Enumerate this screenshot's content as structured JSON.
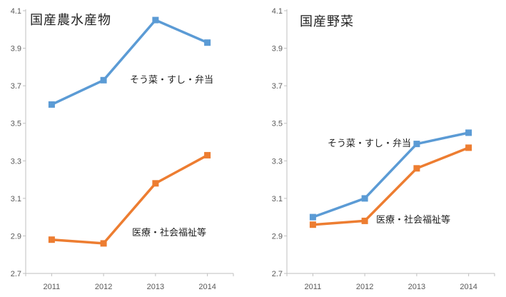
{
  "colors": {
    "series_blue": "#5B9BD5",
    "series_orange": "#ED7D31",
    "axis_line": "#BFBFBF",
    "tick_label": "#595959",
    "text": "#1f1f1f",
    "background": "#ffffff"
  },
  "chart_data": [
    {
      "type": "line",
      "title": "国産農水産物",
      "categories": [
        "2011",
        "2012",
        "2013",
        "2014"
      ],
      "y_ticks": [
        "2.7",
        "2.9",
        "3.1",
        "3.3",
        "3.5",
        "3.7",
        "3.9",
        "4.1"
      ],
      "ylim": [
        2.7,
        4.1
      ],
      "grid": false,
      "legend": "inline-labels",
      "series": [
        {
          "name": "そう菜・すし・弁当",
          "color": "#5B9BD5",
          "marker": "square",
          "values": [
            3.6,
            3.73,
            4.05,
            3.93
          ]
        },
        {
          "name": "医療・社会福祉等",
          "color": "#ED7D31",
          "marker": "square",
          "values": [
            2.88,
            2.86,
            3.18,
            3.33
          ]
        }
      ]
    },
    {
      "type": "line",
      "title": "国産野菜",
      "categories": [
        "2011",
        "2012",
        "2013",
        "2014"
      ],
      "y_ticks": [
        "2.7",
        "2.9",
        "3.1",
        "3.3",
        "3.5",
        "3.7",
        "3.9",
        "4.1"
      ],
      "ylim": [
        2.7,
        4.1
      ],
      "grid": false,
      "legend": "inline-labels",
      "series": [
        {
          "name": "そう菜・すし・弁当",
          "color": "#5B9BD5",
          "marker": "square",
          "values": [
            3.0,
            3.1,
            3.39,
            3.45
          ]
        },
        {
          "name": "医療・社会福祉等",
          "color": "#ED7D31",
          "marker": "square",
          "values": [
            2.96,
            2.98,
            3.26,
            3.37
          ]
        }
      ]
    }
  ]
}
